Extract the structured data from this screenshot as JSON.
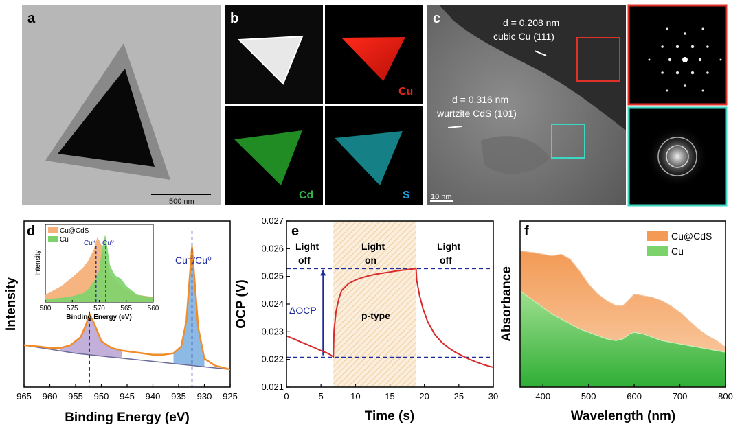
{
  "panels": {
    "a": {
      "letter": "a",
      "scalebar": "500 nm"
    },
    "b": {
      "letter": "b",
      "maps": [
        "Cu",
        "Cd",
        "S"
      ]
    },
    "c": {
      "letter": "c",
      "spacing1": "d = 0.208 nm",
      "phase1": "cubic Cu (111)",
      "spacing2": "d = 0.316 nm",
      "phase2": "wurtzite CdS (101)",
      "scalebar": "10 nm"
    },
    "d": {
      "letter": "d"
    },
    "e": {
      "letter": "e"
    },
    "f": {
      "letter": "f"
    }
  },
  "colors": {
    "cuCdS": "#f29a52",
    "cu": "#6fcf6a",
    "purpleFill": "#b9a3d6",
    "blueFill": "#7fb2e0",
    "curveRed": "#d92b2b",
    "dashBlue": "#1f2a9e",
    "lightBand": "#f7e2c4"
  },
  "chart_data": [
    {
      "panel": "d",
      "type": "line",
      "xlabel": "Binding Energy (eV)",
      "ylabel": "Intensity",
      "xlim": [
        965,
        925
      ],
      "xticks": [
        965,
        960,
        955,
        950,
        945,
        940,
        935,
        930,
        925
      ],
      "annotation": "Cu⁺/Cu⁰",
      "peaks": [
        952.3,
        932.4
      ],
      "series": [
        {
          "name": "Cu 2p spectrum",
          "x": [
            965,
            962,
            960,
            958,
            956,
            954,
            953,
            952.3,
            951.5,
            950,
            948,
            946,
            944,
            942,
            940,
            938,
            936,
            934.5,
            933.5,
            932.8,
            932.4,
            932,
            931.2,
            930,
            928,
            926,
            925
          ],
          "y": [
            0.27,
            0.26,
            0.25,
            0.25,
            0.27,
            0.33,
            0.42,
            0.5,
            0.44,
            0.3,
            0.25,
            0.23,
            0.22,
            0.21,
            0.2,
            0.2,
            0.21,
            0.26,
            0.45,
            0.8,
            1.0,
            0.8,
            0.4,
            0.17,
            0.12,
            0.1,
            0.09
          ]
        },
        {
          "name": "Background",
          "x": [
            965,
            960,
            955,
            950,
            945,
            940,
            935,
            930,
            925
          ],
          "y": [
            0.27,
            0.24,
            0.21,
            0.19,
            0.17,
            0.15,
            0.13,
            0.11,
            0.09
          ]
        }
      ],
      "inset": {
        "type": "area",
        "xlabel": "Binding Energy (eV)",
        "ylabel": "Intensity",
        "xlim": [
          580,
          560
        ],
        "xticks": [
          580,
          575,
          570,
          565,
          560
        ],
        "legend": [
          "Cu@CdS",
          "Cu"
        ],
        "markers": [
          "Cu⁺",
          "Cu⁰"
        ],
        "marker_positions": [
          570.6,
          568.8
        ],
        "series": [
          {
            "name": "Cu@CdS",
            "x": [
              580,
              577,
              575,
              573,
              572,
              571,
              570.4,
              570,
              569.5,
              569,
              568.5,
              568,
              567,
              566,
              565,
              563,
              560
            ],
            "y": [
              0.08,
              0.2,
              0.32,
              0.45,
              0.55,
              0.7,
              0.86,
              0.82,
              0.74,
              0.62,
              0.5,
              0.36,
              0.28,
              0.2,
              0.15,
              0.08,
              0.05
            ]
          },
          {
            "name": "Cu",
            "x": [
              580,
              577,
              575,
              573,
              572,
              571,
              570,
              569.5,
              568.9,
              568.5,
              568,
              567.5,
              567,
              566,
              565,
              563,
              560
            ],
            "y": [
              0.02,
              0.04,
              0.06,
              0.1,
              0.16,
              0.26,
              0.42,
              0.7,
              0.9,
              0.72,
              0.48,
              0.4,
              0.34,
              0.3,
              0.2,
              0.08,
              0.04
            ]
          }
        ]
      }
    },
    {
      "panel": "e",
      "type": "line",
      "xlabel": "Time (s)",
      "ylabel": "OCP  (V)",
      "xlim": [
        0,
        30
      ],
      "ylim": [
        0.021,
        0.027
      ],
      "xticks": [
        0,
        5,
        10,
        15,
        20,
        25,
        30
      ],
      "yticks": [
        0.021,
        0.022,
        0.023,
        0.024,
        0.025,
        0.026,
        0.027
      ],
      "regions": [
        {
          "label_top": "Light",
          "label_bottom": "off",
          "from": 0,
          "to": 6.8
        },
        {
          "label_top": "Light",
          "label_bottom": "on",
          "from": 6.8,
          "to": 18.8
        },
        {
          "label_top": "Light",
          "label_bottom": "off",
          "from": 18.8,
          "to": 30
        }
      ],
      "levels": [
        0.02528,
        0.02208
      ],
      "delta_label": "ΔOCP",
      "type_label": "p-type",
      "series": [
        {
          "name": "OCP",
          "x": [
            0,
            1,
            2,
            3,
            4,
            5,
            6,
            6.8,
            6.9,
            7.2,
            7.6,
            8,
            9,
            10,
            11,
            12,
            13,
            14,
            15,
            16,
            17,
            18,
            18.8,
            18.9,
            19.3,
            19.8,
            20.5,
            21.5,
            22.5,
            23.5,
            24.5,
            25.5,
            26.5,
            27.5,
            28.5,
            29.5,
            30
          ],
          "y": [
            0.02285,
            0.02275,
            0.02264,
            0.02254,
            0.02243,
            0.02232,
            0.02222,
            0.0221,
            0.02305,
            0.02375,
            0.0242,
            0.02449,
            0.02474,
            0.02487,
            0.02496,
            0.02503,
            0.02508,
            0.02512,
            0.02516,
            0.0252,
            0.02523,
            0.02526,
            0.02528,
            0.02485,
            0.02432,
            0.02383,
            0.02335,
            0.02291,
            0.02262,
            0.02242,
            0.02226,
            0.02213,
            0.02201,
            0.02191,
            0.02182,
            0.02175,
            0.02172
          ]
        }
      ]
    },
    {
      "panel": "f",
      "type": "area",
      "xlabel": "Wavelength (nm)",
      "ylabel": "Absorbance",
      "xlim": [
        350,
        800
      ],
      "ylim": [
        0,
        1
      ],
      "xticks": [
        400,
        500,
        600,
        700,
        800
      ],
      "legend": [
        "Cu@CdS",
        "Cu"
      ],
      "series": [
        {
          "name": "Cu@CdS",
          "x": [
            350,
            380,
            400,
            420,
            440,
            460,
            480,
            500,
            520,
            540,
            560,
            575,
            590,
            600,
            620,
            640,
            660,
            680,
            700,
            720,
            740,
            760,
            780,
            800
          ],
          "y": [
            0.82,
            0.81,
            0.8,
            0.79,
            0.8,
            0.77,
            0.7,
            0.62,
            0.56,
            0.52,
            0.49,
            0.49,
            0.53,
            0.56,
            0.55,
            0.54,
            0.52,
            0.49,
            0.45,
            0.4,
            0.35,
            0.31,
            0.28,
            0.24
          ]
        },
        {
          "name": "Cu",
          "x": [
            350,
            380,
            400,
            420,
            440,
            460,
            480,
            500,
            520,
            540,
            560,
            575,
            590,
            600,
            620,
            640,
            660,
            680,
            700,
            720,
            740,
            760,
            780,
            800
          ],
          "y": [
            0.58,
            0.52,
            0.48,
            0.44,
            0.41,
            0.38,
            0.35,
            0.33,
            0.31,
            0.29,
            0.28,
            0.29,
            0.32,
            0.33,
            0.32,
            0.3,
            0.28,
            0.27,
            0.26,
            0.25,
            0.24,
            0.23,
            0.22,
            0.21
          ]
        }
      ]
    }
  ]
}
